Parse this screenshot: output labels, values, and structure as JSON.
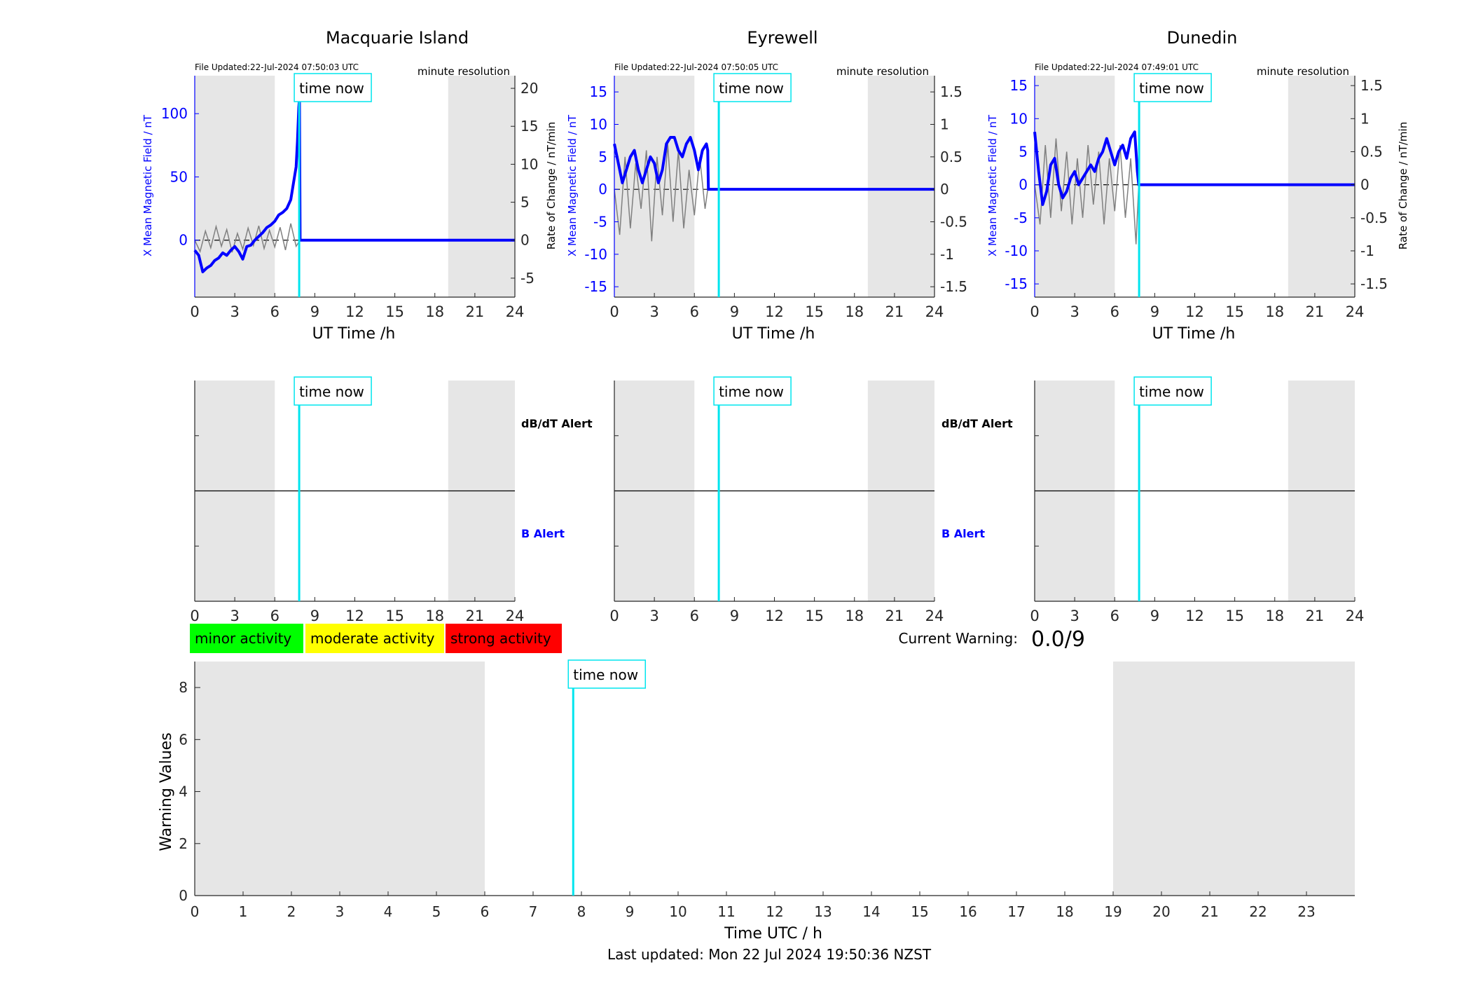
{
  "footer": {
    "last_updated": "Last updated: Mon 22 Jul 2024 19:50:36 NZST"
  },
  "colors": {
    "b_series": "#0000ff",
    "rate_series": "#808080",
    "time_now": "#00e5ee",
    "night_shade": "#e6e6e6",
    "minor": "#00ff00",
    "moderate": "#ffff00",
    "strong": "#ff0000"
  },
  "legend": {
    "minor": "minor activity",
    "moderate": "moderate activity",
    "strong": "strong activity"
  },
  "current_warning": {
    "label": "Current Warning:",
    "value": "0.0/9"
  },
  "chart_data": [
    {
      "type": "line",
      "title": "Macquarie Island",
      "file_updated": "File Updated:22-Jul-2024 07:50:03 UTC",
      "resolution": "minute resolution",
      "time_now_label": "time now",
      "xlabel": "UT Time /h",
      "ylabel_left": "X Mean Magnetic Field / nT",
      "ylabel_right": "Rate of Change / nT/min",
      "xlim": [
        0,
        24
      ],
      "xticks": [
        0,
        3,
        6,
        9,
        12,
        15,
        18,
        21,
        24
      ],
      "ylim_left": [
        -45,
        130
      ],
      "yticks_left": [
        0,
        50,
        100
      ],
      "ylim_right": [
        -7.5,
        21.667
      ],
      "yticks_right": [
        -5,
        0,
        5,
        10,
        15,
        20
      ],
      "night_shading": [
        [
          0,
          6
        ],
        [
          19,
          24
        ]
      ],
      "time_now": 7.83,
      "series": [
        {
          "name": "X Mean Magnetic Field",
          "axis": "left",
          "x": [
            0,
            0.3,
            0.6,
            0.9,
            1.2,
            1.5,
            1.8,
            2.1,
            2.4,
            2.7,
            3.0,
            3.3,
            3.6,
            3.9,
            4.2,
            4.5,
            4.8,
            5.1,
            5.4,
            5.7,
            6.0,
            6.3,
            6.6,
            6.9,
            7.2,
            7.4,
            7.6,
            7.7,
            7.8,
            7.85,
            7.9,
            8.0,
            24
          ],
          "y": [
            -8,
            -12,
            -25,
            -22,
            -20,
            -16,
            -14,
            -10,
            -12,
            -8,
            -5,
            -9,
            -15,
            -5,
            -4,
            0,
            3,
            6,
            10,
            12,
            15,
            20,
            22,
            25,
            32,
            45,
            58,
            78,
            105,
            112,
            0,
            0,
            0
          ]
        },
        {
          "name": "Rate of Change",
          "axis": "right",
          "x": [
            0,
            0.4,
            0.8,
            1.2,
            1.6,
            2.0,
            2.4,
            2.8,
            3.2,
            3.6,
            4.0,
            4.4,
            4.8,
            5.2,
            5.6,
            6.0,
            6.4,
            6.8,
            7.2,
            7.6,
            7.9,
            24
          ],
          "y": [
            0,
            -1.5,
            1.2,
            -1.0,
            1.8,
            -0.8,
            1.4,
            -1.6,
            0.9,
            -1.2,
            1.6,
            -0.7,
            1.9,
            -1.1,
            1.3,
            -0.9,
            1.7,
            -1.3,
            2.2,
            -0.8,
            0,
            0
          ]
        }
      ]
    },
    {
      "type": "line",
      "title": "Eyrewell",
      "file_updated": "File Updated:22-Jul-2024 07:50:05 UTC",
      "resolution": "minute resolution",
      "time_now_label": "time now",
      "xlabel": "UT Time /h",
      "ylabel_left": "X Mean Magnetic Field / nT",
      "ylabel_right": "",
      "xlim": [
        0,
        24
      ],
      "xticks": [
        0,
        3,
        6,
        9,
        12,
        15,
        18,
        21,
        24
      ],
      "ylim_left": [
        -16.6,
        17.5
      ],
      "yticks_left": [
        -15,
        -10,
        -5,
        0,
        5,
        10,
        15
      ],
      "ylim_right": [
        -1.66,
        1.75
      ],
      "yticks_right": [
        -1.5,
        -1,
        -0.5,
        0,
        0.5,
        1,
        1.5
      ],
      "night_shading": [
        [
          0,
          6
        ],
        [
          19,
          24
        ]
      ],
      "time_now": 7.83,
      "series": [
        {
          "name": "X Mean Magnetic Field",
          "axis": "left",
          "x": [
            0,
            0.3,
            0.6,
            0.9,
            1.2,
            1.5,
            1.8,
            2.1,
            2.4,
            2.7,
            3.0,
            3.3,
            3.6,
            3.9,
            4.2,
            4.5,
            4.8,
            5.1,
            5.4,
            5.7,
            6.0,
            6.3,
            6.6,
            6.9,
            7.0,
            7.05,
            24
          ],
          "y": [
            7,
            4,
            1,
            3,
            5,
            6,
            3,
            1,
            3,
            5,
            4,
            1,
            3,
            7,
            8,
            8,
            6,
            5,
            7,
            8,
            6,
            3,
            6,
            7,
            6,
            0,
            0
          ]
        },
        {
          "name": "Rate of Change",
          "axis": "right",
          "x": [
            0,
            0.4,
            0.8,
            1.2,
            1.6,
            2.0,
            2.4,
            2.8,
            3.2,
            3.6,
            4.0,
            4.4,
            4.8,
            5.2,
            5.6,
            6.0,
            6.4,
            6.8,
            7.0,
            24
          ],
          "y": [
            0,
            -0.7,
            0.5,
            -0.6,
            0.4,
            -0.3,
            0.6,
            -0.8,
            0.5,
            -0.4,
            0.7,
            -0.5,
            0.6,
            -0.6,
            0.3,
            -0.4,
            0.5,
            -0.3,
            0,
            0
          ]
        }
      ]
    },
    {
      "type": "line",
      "title": "Dunedin",
      "file_updated": "File Updated:22-Jul-2024 07:49:01 UTC",
      "resolution": "minute resolution",
      "time_now_label": "time now",
      "xlabel": "UT Time /h",
      "ylabel_left": "X Mean Magnetic Field / nT",
      "ylabel_right": "Rate of Change / nT/min",
      "xlim": [
        0,
        24
      ],
      "xticks": [
        0,
        3,
        6,
        9,
        12,
        15,
        18,
        21,
        24
      ],
      "ylim_left": [
        -17,
        16.5
      ],
      "yticks_left": [
        -15,
        -10,
        -5,
        0,
        5,
        10,
        15
      ],
      "ylim_right": [
        -1.7,
        1.65
      ],
      "yticks_right": [
        -1.5,
        -1,
        -0.5,
        0,
        0.5,
        1,
        1.5
      ],
      "night_shading": [
        [
          0,
          6
        ],
        [
          19,
          24
        ]
      ],
      "time_now": 7.83,
      "series": [
        {
          "name": "X Mean Magnetic Field",
          "axis": "left",
          "x": [
            0,
            0.3,
            0.6,
            0.9,
            1.2,
            1.5,
            1.8,
            2.1,
            2.4,
            2.7,
            3.0,
            3.3,
            3.6,
            3.9,
            4.2,
            4.5,
            4.8,
            5.1,
            5.4,
            5.7,
            6.0,
            6.3,
            6.6,
            6.9,
            7.2,
            7.5,
            7.7,
            7.8,
            24
          ],
          "y": [
            8,
            2,
            -3,
            -1,
            3,
            4,
            0,
            -2,
            -1,
            1,
            2,
            0,
            1,
            2,
            3,
            2,
            4,
            5,
            7,
            5,
            3,
            5,
            6,
            4,
            7,
            8,
            2,
            0,
            0
          ]
        },
        {
          "name": "Rate of Change",
          "axis": "right",
          "x": [
            0,
            0.4,
            0.8,
            1.2,
            1.6,
            2.0,
            2.4,
            2.8,
            3.2,
            3.6,
            4.0,
            4.4,
            4.8,
            5.2,
            5.6,
            6.0,
            6.4,
            6.8,
            7.2,
            7.6,
            7.8,
            24
          ],
          "y": [
            0,
            -0.6,
            0.6,
            -0.5,
            0.7,
            -0.4,
            0.5,
            -0.6,
            0.4,
            -0.5,
            0.6,
            -0.3,
            0.5,
            -0.6,
            0.4,
            -0.4,
            0.6,
            -0.5,
            0.4,
            -0.9,
            0,
            0
          ]
        }
      ]
    },
    {
      "type": "line",
      "title": "",
      "alert_labels": {
        "dbdt": "dB/dT Alert",
        "b": "B Alert"
      },
      "time_now_label": "time now",
      "xlim": [
        0,
        24
      ],
      "xticks": [
        0,
        3,
        6,
        9,
        12,
        15,
        18,
        21,
        24
      ],
      "night_shading": [
        [
          0,
          6
        ],
        [
          19,
          24
        ]
      ],
      "time_now": 7.83
    },
    {
      "type": "line",
      "title": "",
      "alert_labels": {
        "dbdt": "dB/dT Alert",
        "b": "B Alert"
      },
      "time_now_label": "time now",
      "xlim": [
        0,
        24
      ],
      "xticks": [
        0,
        3,
        6,
        9,
        12,
        15,
        18,
        21,
        24
      ],
      "night_shading": [
        [
          0,
          6
        ],
        [
          19,
          24
        ]
      ],
      "time_now": 7.83
    },
    {
      "type": "line",
      "title": "",
      "time_now_label": "time now",
      "xlim": [
        0,
        24
      ],
      "xticks": [
        0,
        3,
        6,
        9,
        12,
        15,
        18,
        21,
        24
      ],
      "night_shading": [
        [
          0,
          6
        ],
        [
          19,
          24
        ]
      ],
      "time_now": 7.83
    },
    {
      "type": "bar",
      "title": "",
      "xlabel": "Time UTC / h",
      "ylabel": "Warning Values",
      "time_now_label": "time now",
      "xlim": [
        0,
        24
      ],
      "xticks": [
        0,
        1,
        2,
        3,
        4,
        5,
        6,
        7,
        8,
        9,
        10,
        11,
        12,
        13,
        14,
        15,
        16,
        17,
        18,
        19,
        20,
        21,
        22,
        23
      ],
      "ylim": [
        0,
        9
      ],
      "yticks": [
        0,
        2,
        4,
        6,
        8
      ],
      "night_shading": [
        [
          0,
          6
        ],
        [
          19,
          24
        ]
      ],
      "time_now": 7.83,
      "values": []
    }
  ]
}
